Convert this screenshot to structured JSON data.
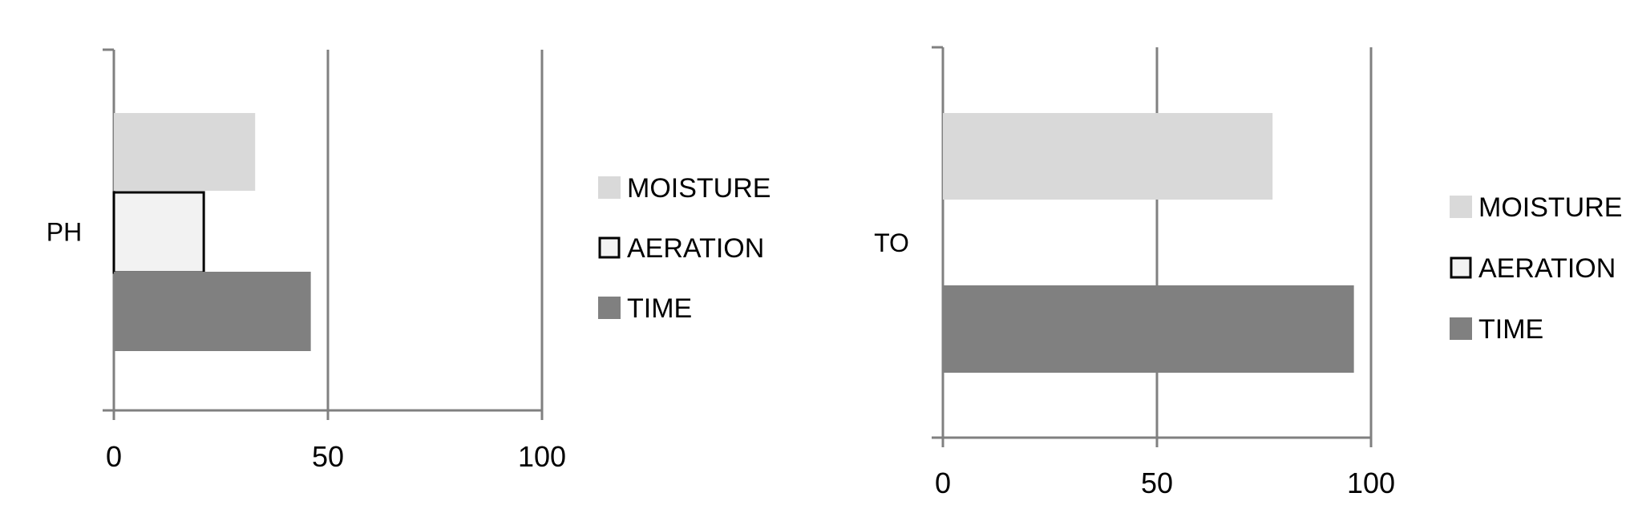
{
  "chart_data": [
    {
      "type": "bar",
      "orientation": "horizontal",
      "categories": [
        "PH"
      ],
      "xlim": [
        0,
        100
      ],
      "xticks": [
        0,
        50,
        100
      ],
      "grid": true,
      "legend_position": "right",
      "series": [
        {
          "name": "MOISTURE",
          "values": [
            33
          ],
          "color": "#d9d9d9"
        },
        {
          "name": "AERATION",
          "values": [
            21
          ],
          "color": "#f2f2f2"
        },
        {
          "name": "TIME",
          "values": [
            46
          ],
          "color": "#808080"
        }
      ]
    },
    {
      "type": "bar",
      "orientation": "horizontal",
      "categories": [
        "TO"
      ],
      "xlim": [
        0,
        100
      ],
      "xticks": [
        0,
        50,
        100
      ],
      "grid": true,
      "legend_position": "right",
      "series": [
        {
          "name": "MOISTURE",
          "values": [
            77
          ],
          "color": "#d9d9d9"
        },
        {
          "name": "AERATION",
          "values": [
            0
          ],
          "color": "#f2f2f2"
        },
        {
          "name": "TIME",
          "values": [
            96
          ],
          "color": "#808080"
        }
      ]
    }
  ]
}
